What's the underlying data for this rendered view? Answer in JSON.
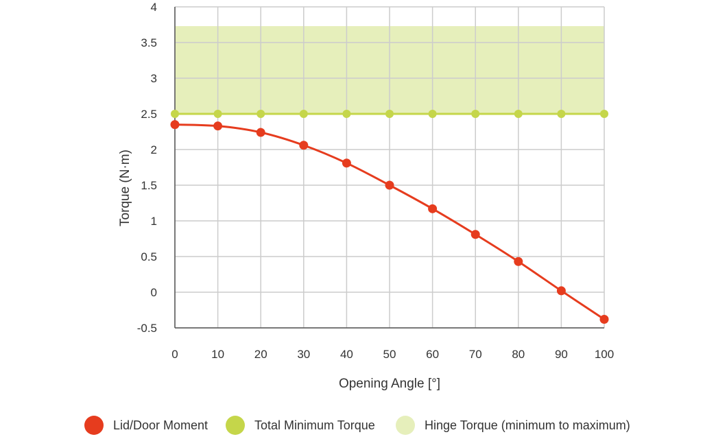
{
  "chart_data": {
    "type": "line",
    "xlabel": "Opening Angle [°]",
    "ylabel": "Torque (N·m)",
    "xlim": [
      0,
      100
    ],
    "ylim": [
      -0.5,
      4
    ],
    "x_ticks": [
      "0",
      "10",
      "20",
      "30",
      "40",
      "50",
      "60",
      "70",
      "80",
      "90",
      "100"
    ],
    "y_ticks": [
      "4",
      "3.5",
      "3",
      "2.5",
      "2",
      "1.5",
      "1",
      "0.5",
      "0",
      "-0.5"
    ],
    "grid": true,
    "legend_position": "bottom",
    "x": [
      0,
      10,
      20,
      30,
      40,
      50,
      60,
      70,
      80,
      90,
      100
    ],
    "series": [
      {
        "name": "Lid/Door Moment",
        "color": "#e63c1e",
        "values": [
          2.35,
          2.33,
          2.24,
          2.06,
          1.81,
          1.5,
          1.17,
          0.81,
          0.43,
          0.02,
          -0.38
        ]
      },
      {
        "name": "Total Minimum Torque",
        "color": "#c5d64a",
        "values": [
          2.5,
          2.5,
          2.5,
          2.5,
          2.5,
          2.5,
          2.5,
          2.5,
          2.5,
          2.5,
          2.5
        ]
      }
    ],
    "band": {
      "name": "Hinge Torque (minimum to maximum)",
      "color": "#e6efbb",
      "min": 2.5,
      "max": 3.73
    }
  }
}
